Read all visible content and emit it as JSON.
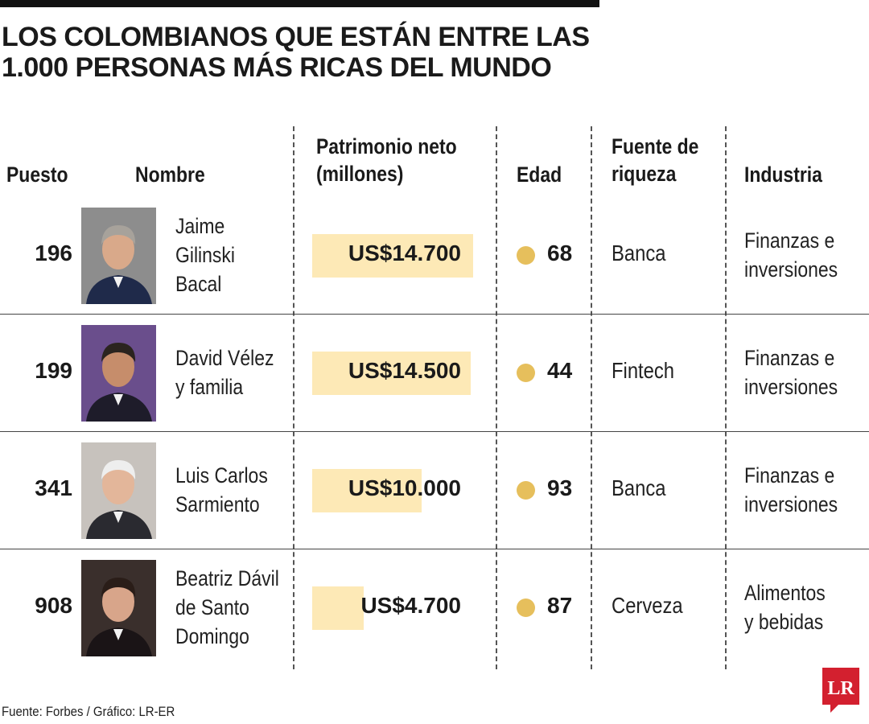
{
  "title": "LOS COLOMBIANOS QUE ESTÁN ENTRE LAS 1.000 PERSONAS MÁS RICAS DEL MUNDO",
  "headers": {
    "rank": "Puesto",
    "name": "Nombre",
    "worth_line1": "Patrimonio neto",
    "worth_line2": "(millones)",
    "age": "Edad",
    "source_line1": "Fuente de",
    "source_line2": "riqueza",
    "industry": "Industria"
  },
  "chart_data": {
    "type": "table",
    "rows": [
      {
        "rank": "196",
        "name_lines": [
          "Jaime",
          "Gilinski",
          "Bacal"
        ],
        "net_worth_label": "US$14.700",
        "net_worth": 14700,
        "age": "68",
        "source": "Banca",
        "industry_lines": [
          "Finanzas e",
          "inversiones"
        ]
      },
      {
        "rank": "199",
        "name_lines": [
          "David Vélez",
          "y familia"
        ],
        "net_worth_label": "US$14.500",
        "net_worth": 14500,
        "age": "44",
        "source": "Fintech",
        "industry_lines": [
          "Finanzas e",
          "inversiones"
        ]
      },
      {
        "rank": "341",
        "name_lines": [
          "Luis Carlos",
          "Sarmiento"
        ],
        "net_worth_label": "US$10.000",
        "net_worth": 10000,
        "age": "93",
        "source": "Banca",
        "industry_lines": [
          "Finanzas e",
          "inversiones"
        ]
      },
      {
        "rank": "908",
        "name_lines": [
          "Beatriz Dávil",
          "de Santo",
          "Domingo"
        ],
        "net_worth_label": "US$4.700",
        "net_worth": 4700,
        "age": "87",
        "source": "Cerveza",
        "industry_lines": [
          "Alimentos",
          "y bebidas"
        ]
      }
    ]
  },
  "footer": "Fuente: Forbes / Gráfico: LR-ER",
  "logo_text": "LR",
  "colors": {
    "bar": "#fde9b6",
    "dot": "#e6bf5c",
    "logo": "#d3202f"
  }
}
